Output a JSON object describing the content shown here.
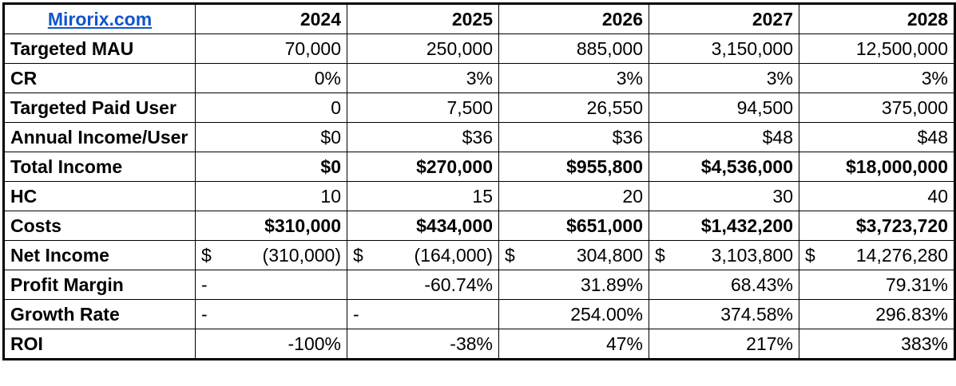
{
  "brand": {
    "label": "Mirorix.com"
  },
  "years": [
    "2024",
    "2025",
    "2026",
    "2027",
    "2028"
  ],
  "rows": {
    "targeted_mau": {
      "label": "Targeted MAU",
      "values": [
        "70,000",
        "250,000",
        "885,000",
        "3,150,000",
        "12,500,000"
      ]
    },
    "cr": {
      "label": "CR",
      "values": [
        "0%",
        "3%",
        "3%",
        "3%",
        "3%"
      ]
    },
    "targeted_paid_user": {
      "label": "Targeted Paid User",
      "values": [
        "0",
        "7,500",
        "26,550",
        "94,500",
        "375,000"
      ]
    },
    "annual_income_user": {
      "label": "Annual Income/User",
      "values": [
        "$0",
        "$36",
        "$36",
        "$48",
        "$48"
      ]
    },
    "total_income": {
      "label": "Total Income",
      "values": [
        "$0",
        "$270,000",
        "$955,800",
        "$4,536,000",
        "$18,000,000"
      ]
    },
    "hc": {
      "label": "HC",
      "values": [
        "10",
        "15",
        "20",
        "30",
        "40"
      ]
    },
    "costs": {
      "label": "Costs",
      "values": [
        "$310,000",
        "$434,000",
        "$651,000",
        "$1,432,200",
        "$3,723,720"
      ]
    },
    "net_income": {
      "label": "Net Income",
      "symbol": "$",
      "values": [
        "(310,000)",
        "(164,000)",
        "304,800",
        "3,103,800",
        "14,276,280"
      ]
    },
    "profit_margin": {
      "label": "Profit Margin",
      "values": [
        "-",
        "-60.74%",
        "31.89%",
        "68.43%",
        "79.31%"
      ]
    },
    "growth_rate": {
      "label": "Growth Rate",
      "values": [
        "-",
        "-",
        "254.00%",
        "374.58%",
        "296.83%"
      ]
    },
    "roi": {
      "label": "ROI",
      "values": [
        "-100%",
        "-38%",
        "47%",
        "217%",
        "383%"
      ]
    }
  }
}
